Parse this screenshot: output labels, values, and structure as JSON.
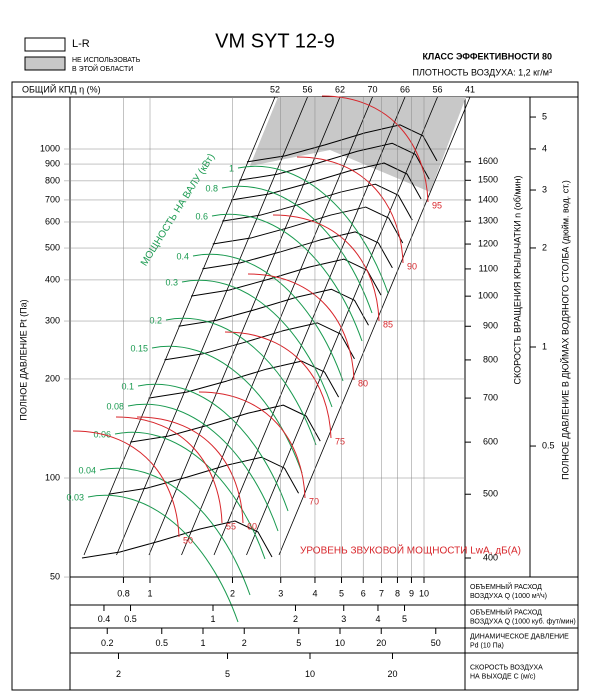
{
  "header": {
    "title": "VM  SYT 12-9",
    "legend": [
      "L-R",
      "НЕ ИСПОЛЬЗОВАТЬ",
      "В ЭТОЙ ОБЛАСТИ"
    ],
    "class": "КЛАСС ЭФФЕКТИВНОСТИ 80",
    "density": "ПЛОТНОСТЬ ВОЗДУХА: 1,2 кг/м³"
  },
  "efficiency": {
    "label": "ОБЩИЙ КПД η (%)",
    "values": [
      52,
      56,
      62,
      70,
      66,
      56,
      41
    ]
  },
  "pressure_axis": {
    "label": "ПОЛНОЕ ДАВЛЕНИЕ Pt (Па)",
    "ticks": [
      50,
      100,
      200,
      300,
      400,
      500,
      600,
      700,
      800,
      900,
      1000
    ]
  },
  "rpm_axis": {
    "label": "СКОРОСТЬ ВРАЩЕНИЯ КРЫЛЬЧАТКИ  n (об/мин)",
    "ticks": [
      400,
      500,
      600,
      700,
      800,
      900,
      1000,
      1100,
      1200,
      1300,
      1400,
      1500,
      1600
    ]
  },
  "inch_axis": {
    "label": "ПОЛНОЕ ДАВЛЕНИЕ В ДЮЙМАХ ВОДЯНОГО СТОЛБА (дюйм. вод. ст.)",
    "ticks": [
      0.5,
      1,
      2,
      3,
      4,
      5
    ]
  },
  "power": {
    "label": "МОЩНОСТЬ НА ВАЛУ (кВт)",
    "values": [
      1,
      0.8,
      0.6,
      0.4,
      0.3,
      0.2,
      0.15,
      0.1,
      0.08,
      0.06,
      0.04,
      0.03
    ]
  },
  "sound": {
    "label": "УРОВЕНЬ ЗВУКОВОЙ МОЩНОСТИ LwA, дБ(A)",
    "values": [
      50,
      55,
      60,
      70,
      75,
      80,
      85,
      90,
      95
    ]
  },
  "bottom_axes": [
    {
      "label": "ОБЪЕМНЫЙ РАСХОД ВОЗДУХА Q (1000 м³/ч)",
      "ticks": [
        0.8,
        1,
        2,
        3,
        4,
        5,
        6,
        7,
        8,
        9,
        10
      ]
    },
    {
      "label": "ОБЪЕМНЫЙ РАСХОД ВОЗДУХА Q (1000 куб. фут/мин)",
      "ticks": [
        0.4,
        0.5,
        1,
        2,
        3,
        4,
        5
      ]
    },
    {
      "label": "ДИНАМИЧЕСКОЕ ДАВЛЕНИЕ Pd (10 Па)",
      "ticks": [
        0.2,
        0.5,
        1,
        2,
        5,
        10,
        20,
        50
      ]
    },
    {
      "label": "СКОРОСТЬ ВОЗДУХА НА ВЫХОДЕ C (м/с)",
      "ticks": [
        2,
        5,
        10,
        20
      ]
    }
  ]
}
